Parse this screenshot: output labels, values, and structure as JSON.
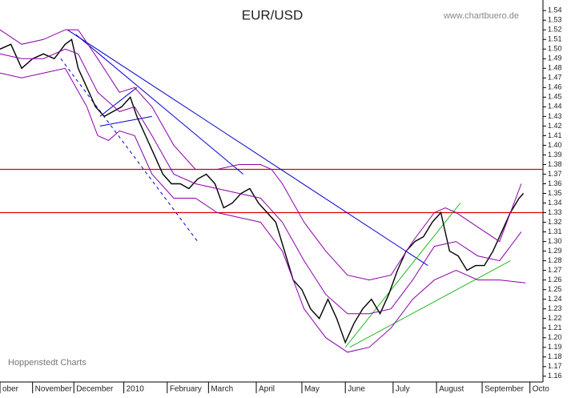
{
  "chart_data": {
    "type": "line",
    "title": "EUR/USD",
    "source": "www.chartbuero.de",
    "credit": "Hoppenstedt Charts",
    "xlim": [
      0,
      250
    ],
    "ylim": [
      1.154,
      1.551
    ],
    "xticks": [
      {
        "value": 0,
        "label": "ober"
      },
      {
        "value": 15,
        "label": "November"
      },
      {
        "value": 34,
        "label": "December"
      },
      {
        "value": 57,
        "label": "2010"
      },
      {
        "value": 77,
        "label": "February"
      },
      {
        "value": 96,
        "label": "March"
      },
      {
        "value": 118,
        "label": "April"
      },
      {
        "value": 139,
        "label": "May"
      },
      {
        "value": 159,
        "label": "June"
      },
      {
        "value": 181,
        "label": "July"
      },
      {
        "value": 201,
        "label": "August"
      },
      {
        "value": 222,
        "label": "September"
      },
      {
        "value": 244,
        "label": "Octo"
      }
    ],
    "yticks": [
      1.16,
      1.17,
      1.18,
      1.19,
      {
        "value": 1.2,
        "label": "1.20"
      },
      1.21,
      1.22,
      1.23,
      1.24,
      1.25,
      1.26,
      1.27,
      1.28,
      1.29,
      {
        "value": 1.3,
        "label": "1.30"
      },
      1.31,
      1.32,
      1.33,
      1.34,
      1.35,
      1.36,
      1.37,
      1.38,
      1.39,
      {
        "value": 1.4,
        "label": "1.40"
      },
      1.41,
      1.42,
      1.43,
      1.44,
      1.45,
      1.46,
      1.47,
      1.48,
      1.49,
      {
        "value": 1.5,
        "label": "1.50"
      },
      1.51,
      1.52,
      1.53,
      1.54
    ],
    "series": [
      {
        "color": "#000000",
        "x": [
          0,
          5,
          10,
          15,
          20,
          25,
          30,
          33,
          36,
          40,
          44,
          48,
          52,
          56,
          60,
          63,
          67,
          71,
          75,
          79,
          83,
          87,
          91,
          95,
          99,
          103,
          107,
          111,
          115,
          119,
          123,
          127,
          131,
          135,
          139,
          143,
          147,
          151,
          155,
          159,
          163,
          167,
          171,
          175,
          179,
          183,
          187,
          191,
          195,
          199,
          203,
          207,
          211,
          215,
          219,
          223,
          227,
          231,
          235,
          239,
          241
        ],
        "values": [
          1.5,
          1.505,
          1.48,
          1.49,
          1.495,
          1.49,
          1.505,
          1.51,
          1.48,
          1.46,
          1.44,
          1.43,
          1.435,
          1.44,
          1.45,
          1.43,
          1.41,
          1.39,
          1.37,
          1.36,
          1.36,
          1.355,
          1.365,
          1.37,
          1.36,
          1.335,
          1.34,
          1.35,
          1.355,
          1.34,
          1.33,
          1.32,
          1.29,
          1.26,
          1.25,
          1.23,
          1.22,
          1.24,
          1.22,
          1.195,
          1.215,
          1.23,
          1.24,
          1.225,
          1.245,
          1.27,
          1.29,
          1.3,
          1.305,
          1.32,
          1.33,
          1.29,
          1.285,
          1.27,
          1.275,
          1.275,
          1.29,
          1.31,
          1.33,
          1.345,
          1.35
        ]
      },
      {
        "color": "#8b00a8",
        "x": [
          0,
          10,
          20,
          30,
          36,
          45,
          55,
          62,
          70,
          80,
          90,
          100,
          110,
          120,
          125,
          130,
          140,
          150,
          160,
          170,
          180,
          190,
          200,
          205,
          210,
          220,
          230,
          240
        ],
        "values": [
          1.52,
          1.505,
          1.51,
          1.52,
          1.52,
          1.49,
          1.455,
          1.46,
          1.44,
          1.4,
          1.375,
          1.375,
          1.38,
          1.38,
          1.375,
          1.36,
          1.32,
          1.29,
          1.265,
          1.26,
          1.265,
          1.3,
          1.33,
          1.335,
          1.33,
          1.315,
          1.3,
          1.36
        ]
      },
      {
        "color": "#8b00a8",
        "x": [
          0,
          10,
          20,
          30,
          36,
          45,
          55,
          62,
          70,
          80,
          90,
          100,
          110,
          120,
          130,
          140,
          150,
          160,
          170,
          180,
          190,
          200,
          210,
          220,
          230,
          240
        ],
        "values": [
          1.495,
          1.49,
          1.49,
          1.5,
          1.495,
          1.455,
          1.435,
          1.44,
          1.41,
          1.37,
          1.36,
          1.355,
          1.35,
          1.345,
          1.32,
          1.28,
          1.245,
          1.225,
          1.225,
          1.23,
          1.26,
          1.295,
          1.3,
          1.285,
          1.28,
          1.31
        ]
      },
      {
        "color": "#8b00a8",
        "x": [
          0,
          10,
          20,
          30,
          40,
          45,
          50,
          55,
          62,
          70,
          80,
          90,
          100,
          110,
          120,
          130,
          140,
          150,
          160,
          170,
          180,
          190,
          200,
          210,
          220,
          230,
          242
        ],
        "values": [
          1.475,
          1.47,
          1.475,
          1.48,
          1.44,
          1.41,
          1.405,
          1.415,
          1.41,
          1.37,
          1.345,
          1.345,
          1.33,
          1.325,
          1.32,
          1.29,
          1.23,
          1.2,
          1.185,
          1.19,
          1.21,
          1.24,
          1.26,
          1.27,
          1.26,
          1.26,
          1.257
        ]
      }
    ],
    "hlines": [
      {
        "value": 1.375,
        "color": "#e00000"
      },
      {
        "value": 1.33,
        "color": "#e00000"
      }
    ],
    "trendlines": [
      {
        "x": [
          31,
          197
        ],
        "values": [
          1.52,
          1.275
        ],
        "color": "#0000cc",
        "dashed": false
      },
      {
        "x": [
          35,
          112
        ],
        "values": [
          1.515,
          1.37
        ],
        "color": "#0000cc",
        "dashed": false
      },
      {
        "x": [
          46,
          63
        ],
        "values": [
          1.43,
          1.46
        ],
        "color": "#0000cc",
        "dashed": false
      },
      {
        "x": [
          46,
          70
        ],
        "values": [
          1.42,
          1.43
        ],
        "color": "#0000cc",
        "dashed": false
      },
      {
        "x": [
          28,
          91
        ],
        "values": [
          1.49,
          1.3
        ],
        "color": "#0000cc",
        "dashed": true
      },
      {
        "x": [
          159,
          212
        ],
        "values": [
          1.19,
          1.34
        ],
        "color": "#22bb22",
        "dashed": false
      },
      {
        "x": [
          161,
          235
        ],
        "values": [
          1.19,
          1.28
        ],
        "color": "#22bb22",
        "dashed": false
      }
    ]
  }
}
